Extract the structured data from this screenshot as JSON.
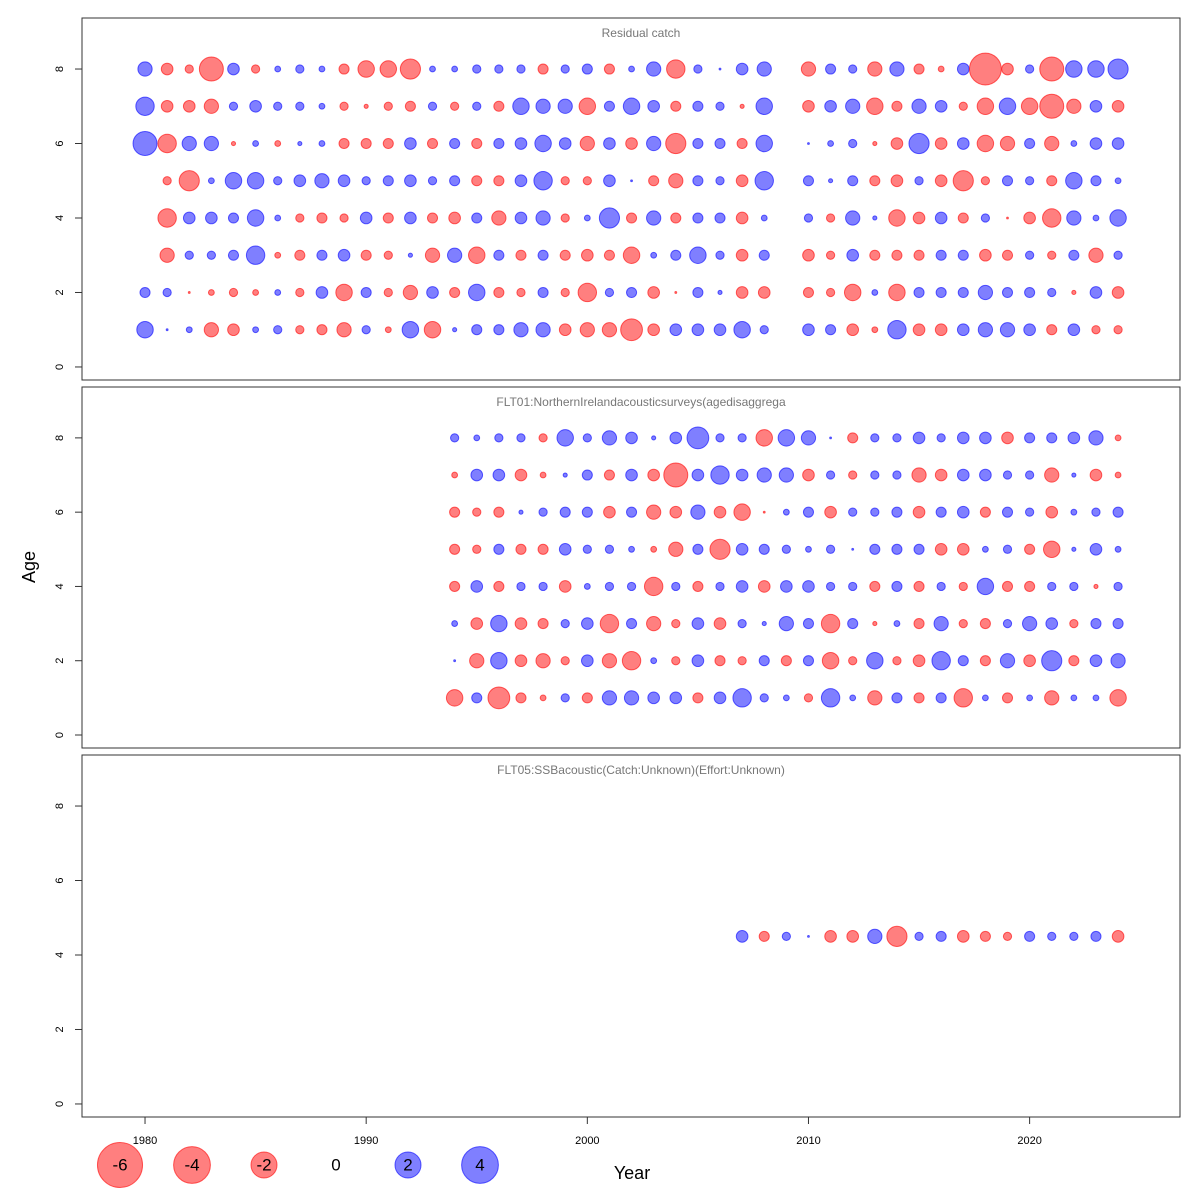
{
  "chart_data": [
    {
      "type": "bubble",
      "title": "Residual catch",
      "x": [
        1980,
        1981,
        1982,
        1983,
        1984,
        1985,
        1986,
        1987,
        1988,
        1989,
        1990,
        1991,
        1992,
        1993,
        1994,
        1995,
        1996,
        1997,
        1998,
        1999,
        2000,
        2001,
        2002,
        2003,
        2004,
        2005,
        2006,
        2007,
        2008,
        2009,
        2010,
        2011,
        2012,
        2013,
        2014,
        2015,
        2016,
        2017,
        2018,
        2019,
        2020,
        2021,
        2022,
        2023,
        2024
      ],
      "y": [
        1,
        2,
        3,
        4,
        5,
        6,
        7,
        8
      ],
      "values": [
        [
          0.8,
          0.01,
          0.1,
          -0.6,
          -0.4,
          0.1,
          0.2,
          -0.2,
          -0.3,
          -0.6,
          0.2,
          -0.1,
          0.8,
          -0.8,
          0.05,
          0.3,
          0.3,
          0.6,
          0.6,
          -0.4,
          -0.6,
          -0.6,
          -1.4,
          -0.4,
          0.4,
          0.4,
          0.4,
          0.8,
          0.2,
          null,
          0.4,
          0.3,
          -0.4,
          -0.1,
          1,
          -0.4,
          -0.4,
          0.4,
          0.6,
          0.6,
          0.4,
          -0.3,
          0.4,
          -0.2,
          -0.2
        ],
        [
          0.3,
          0.2,
          -0.01,
          -0.1,
          -0.2,
          -0.1,
          0.1,
          -0.2,
          0.4,
          -0.8,
          0.3,
          -0.2,
          -0.6,
          0.4,
          -0.3,
          0.8,
          -0.3,
          -0.2,
          0.3,
          -0.2,
          -1,
          0.2,
          0.3,
          -0.4,
          -0.01,
          0.3,
          0.05,
          -0.4,
          -0.4,
          null,
          -0.3,
          -0.2,
          -0.8,
          0.1,
          -0.8,
          0.3,
          0.3,
          0.3,
          0.6,
          0.3,
          0.3,
          0.2,
          -0.05,
          0.4,
          -0.4
        ],
        [
          null,
          -0.6,
          0.2,
          0.2,
          0.3,
          1,
          -0.1,
          -0.3,
          0.3,
          0.4,
          -0.3,
          -0.2,
          0.05,
          -0.6,
          0.6,
          -0.8,
          0.3,
          -0.3,
          0.3,
          -0.3,
          -0.4,
          -0.3,
          -0.8,
          0.1,
          0.3,
          0.8,
          0.2,
          -0.4,
          0.3,
          null,
          -0.4,
          -0.2,
          0.4,
          -0.3,
          -0.3,
          -0.3,
          0.3,
          0.3,
          -0.4,
          -0.3,
          0.2,
          -0.2,
          0.3,
          -0.6,
          0.2
        ],
        [
          null,
          -1,
          0.4,
          0.4,
          0.3,
          0.8,
          0.1,
          -0.2,
          -0.3,
          -0.2,
          0.4,
          -0.3,
          0.4,
          -0.3,
          -0.4,
          0.3,
          -0.6,
          0.4,
          0.6,
          -0.2,
          0.1,
          1.2,
          -0.3,
          0.6,
          -0.3,
          0.3,
          0.3,
          -0.4,
          0.1,
          null,
          0.2,
          -0.2,
          0.6,
          0.05,
          -0.8,
          -0.4,
          0.4,
          -0.3,
          0.2,
          -0.01,
          -0.4,
          -1,
          0.6,
          0.1,
          0.8
        ],
        [
          null,
          -0.2,
          -1.2,
          0.1,
          0.8,
          0.8,
          0.2,
          0.4,
          0.6,
          0.4,
          0.2,
          0.3,
          0.4,
          0.2,
          0.3,
          -0.3,
          -0.3,
          0.4,
          1,
          -0.2,
          -0.2,
          0.4,
          0.01,
          -0.3,
          -0.6,
          0.3,
          0.2,
          -0.4,
          1,
          null,
          0.3,
          0.05,
          0.3,
          -0.3,
          -0.4,
          0.2,
          -0.4,
          -1.2,
          -0.2,
          0.3,
          0.2,
          -0.3,
          0.8,
          0.3,
          0.1
        ],
        [
          1.7,
          -1,
          0.6,
          0.6,
          -0.05,
          0.1,
          -0.1,
          0.05,
          0.1,
          -0.3,
          -0.3,
          -0.3,
          0.4,
          -0.3,
          0.3,
          -0.3,
          0.3,
          0.4,
          0.8,
          0.4,
          -0.6,
          0.4,
          -0.4,
          0.6,
          -1.2,
          0.3,
          0.3,
          -0.3,
          0.8,
          null,
          0.01,
          0.1,
          0.2,
          -0.05,
          -0.4,
          1.2,
          -0.4,
          0.4,
          -0.8,
          -0.6,
          0.3,
          -0.6,
          0.1,
          0.4,
          0.4
        ],
        [
          1,
          -0.4,
          -0.4,
          -0.6,
          0.2,
          0.4,
          0.2,
          0.2,
          0.1,
          -0.2,
          -0.05,
          -0.2,
          -0.3,
          0.2,
          -0.2,
          0.2,
          -0.3,
          0.8,
          0.6,
          0.6,
          -0.8,
          0.3,
          0.8,
          0.4,
          -0.3,
          0.3,
          0.2,
          -0.05,
          0.8,
          null,
          -0.4,
          0.4,
          0.6,
          -0.8,
          -0.3,
          0.6,
          0.4,
          -0.2,
          -0.8,
          0.8,
          -0.8,
          -1.7,
          -0.6,
          0.4,
          -0.4
        ],
        [
          0.6,
          -0.4,
          -0.2,
          -1.7,
          0.4,
          -0.2,
          0.1,
          0.2,
          0.1,
          -0.3,
          -0.8,
          -0.8,
          -1.2,
          0.1,
          0.1,
          0.2,
          0.2,
          0.2,
          -0.3,
          0.2,
          0.3,
          -0.3,
          0.1,
          0.6,
          -1,
          0.2,
          0.01,
          0.4,
          0.6,
          null,
          -0.6,
          0.3,
          0.2,
          -0.6,
          0.6,
          -0.3,
          -0.1,
          0.4,
          -3,
          -0.4,
          0.2,
          -1.7,
          0.8,
          0.8,
          1.2
        ]
      ],
      "xlim": [
        1977.15,
        2026.8
      ],
      "ylim": [
        -0.35,
        9.37
      ],
      "yticks": [
        0,
        2,
        4,
        6,
        8
      ],
      "positive_color": "#0000ff",
      "negative_color": "#ff0000"
    },
    {
      "type": "bubble",
      "title": "FLT01:NorthernIrelandacousticsurveys(agedisaggrega",
      "ylabel": "Age",
      "x": [
        1994,
        1995,
        1996,
        1997,
        1998,
        1999,
        2000,
        2001,
        2002,
        2003,
        2004,
        2005,
        2006,
        2007,
        2008,
        2009,
        2010,
        2011,
        2012,
        2013,
        2014,
        2015,
        2016,
        2017,
        2018,
        2019,
        2020,
        2021,
        2022,
        2023,
        2024
      ],
      "y": [
        1,
        2,
        3,
        4,
        5,
        6,
        7,
        8
      ],
      "values": [
        [
          -0.8,
          0.3,
          -1.4,
          -0.3,
          -0.1,
          0.2,
          -0.3,
          0.6,
          0.6,
          0.4,
          0.4,
          -0.3,
          0.4,
          1,
          0.2,
          0.1,
          -0.2,
          1,
          0.1,
          -0.6,
          0.3,
          -0.3,
          0.3,
          -1,
          0.1,
          -0.3,
          0.1,
          -0.6,
          0.1,
          0.1,
          -0.8
        ],
        [
          0.01,
          -0.6,
          0.8,
          -0.4,
          -0.6,
          -0.2,
          0.4,
          -0.6,
          -1,
          0.1,
          -0.2,
          0.4,
          -0.3,
          -0.2,
          0.3,
          -0.3,
          0.3,
          -0.8,
          -0.2,
          0.8,
          -0.2,
          -0.4,
          1,
          0.3,
          -0.3,
          0.6,
          -0.4,
          1.2,
          -0.3,
          0.4,
          0.6
        ],
        [
          0.1,
          -0.4,
          0.8,
          -0.4,
          -0.3,
          0.2,
          0.4,
          -1,
          0.3,
          -0.6,
          -0.2,
          0.4,
          -0.4,
          0.2,
          0.05,
          0.6,
          0.3,
          -1,
          0.3,
          -0.05,
          0.1,
          -0.3,
          0.6,
          -0.2,
          -0.3,
          0.2,
          0.6,
          0.4,
          -0.2,
          0.3,
          0.3
        ],
        [
          -0.3,
          0.4,
          -0.3,
          0.2,
          0.2,
          -0.4,
          0.1,
          0.2,
          0.2,
          -1,
          0.2,
          -0.3,
          0.2,
          0.4,
          -0.4,
          0.4,
          0.4,
          0.2,
          0.2,
          -0.3,
          0.3,
          -0.3,
          0.2,
          -0.2,
          0.8,
          -0.3,
          -0.3,
          0.2,
          0.2,
          -0.05,
          0.2
        ],
        [
          -0.3,
          -0.2,
          0.3,
          -0.3,
          -0.3,
          0.4,
          0.2,
          0.2,
          0.1,
          -0.1,
          -0.6,
          0.3,
          -1.2,
          0.4,
          0.3,
          0.2,
          0.1,
          0.2,
          0.01,
          0.3,
          0.3,
          0.3,
          -0.4,
          -0.4,
          0.1,
          0.2,
          -0.3,
          -0.8,
          0.05,
          0.4,
          0.1
        ],
        [
          -0.3,
          -0.2,
          -0.3,
          0.05,
          0.2,
          0.3,
          0.3,
          -0.4,
          0.3,
          -0.6,
          -0.4,
          0.6,
          -0.4,
          -0.8,
          -0.01,
          0.1,
          0.3,
          -0.4,
          0.2,
          0.2,
          0.3,
          -0.4,
          0.3,
          0.4,
          -0.3,
          0.3,
          0.2,
          -0.4,
          0.1,
          0.2,
          0.3
        ],
        [
          -0.1,
          0.4,
          0.4,
          -0.4,
          -0.1,
          0.05,
          0.3,
          -0.3,
          0.4,
          -0.4,
          -1.7,
          0.4,
          1,
          0.4,
          0.6,
          0.6,
          -0.4,
          0.2,
          -0.2,
          0.2,
          0.2,
          -0.6,
          -0.4,
          0.4,
          0.4,
          0.2,
          0.2,
          -0.6,
          0.05,
          -0.4,
          -0.1
        ],
        [
          0.2,
          0.1,
          0.2,
          0.2,
          -0.2,
          0.8,
          0.2,
          0.6,
          0.4,
          0.05,
          0.4,
          1.4,
          0.2,
          0.2,
          -0.8,
          0.8,
          0.6,
          0.01,
          -0.3,
          0.2,
          0.2,
          0.4,
          0.2,
          0.4,
          0.4,
          -0.4,
          0.3,
          0.3,
          0.4,
          0.6,
          -0.1
        ]
      ],
      "xlim": [
        1977.15,
        2026.8
      ],
      "ylim": [
        -0.35,
        9.37
      ],
      "yticks": [
        0,
        2,
        4,
        6,
        8
      ],
      "positive_color": "#0000ff",
      "negative_color": "#ff0000"
    },
    {
      "type": "bubble",
      "title": "FLT05:SSBacoustic(Catch:Unknown)(Effort:Unknown)",
      "xlabel": "Year",
      "x": [
        2007,
        2008,
        2009,
        2010,
        2011,
        2012,
        2013,
        2014,
        2015,
        2016,
        2017,
        2018,
        2019,
        2020,
        2021,
        2022,
        2023,
        2024
      ],
      "y": [
        4.5
      ],
      "values": [
        [
          0.4,
          -0.3,
          0.2,
          0.01,
          -0.4,
          -0.4,
          0.6,
          -1.2,
          0.2,
          0.3,
          -0.4,
          -0.3,
          -0.2,
          0.3,
          0.2,
          0.2,
          0.3,
          -0.4
        ]
      ],
      "xlim": [
        1977.15,
        2026.8
      ],
      "ylim": [
        -0.35,
        9.37
      ],
      "yticks": [
        0,
        2,
        4,
        6,
        8
      ],
      "xticks": [
        1980,
        1990,
        2000,
        2010,
        2020
      ],
      "positive_color": "#0000ff",
      "negative_color": "#ff0000"
    }
  ],
  "legend": {
    "values": [
      -6,
      -4,
      -2,
      0,
      2,
      4
    ]
  }
}
